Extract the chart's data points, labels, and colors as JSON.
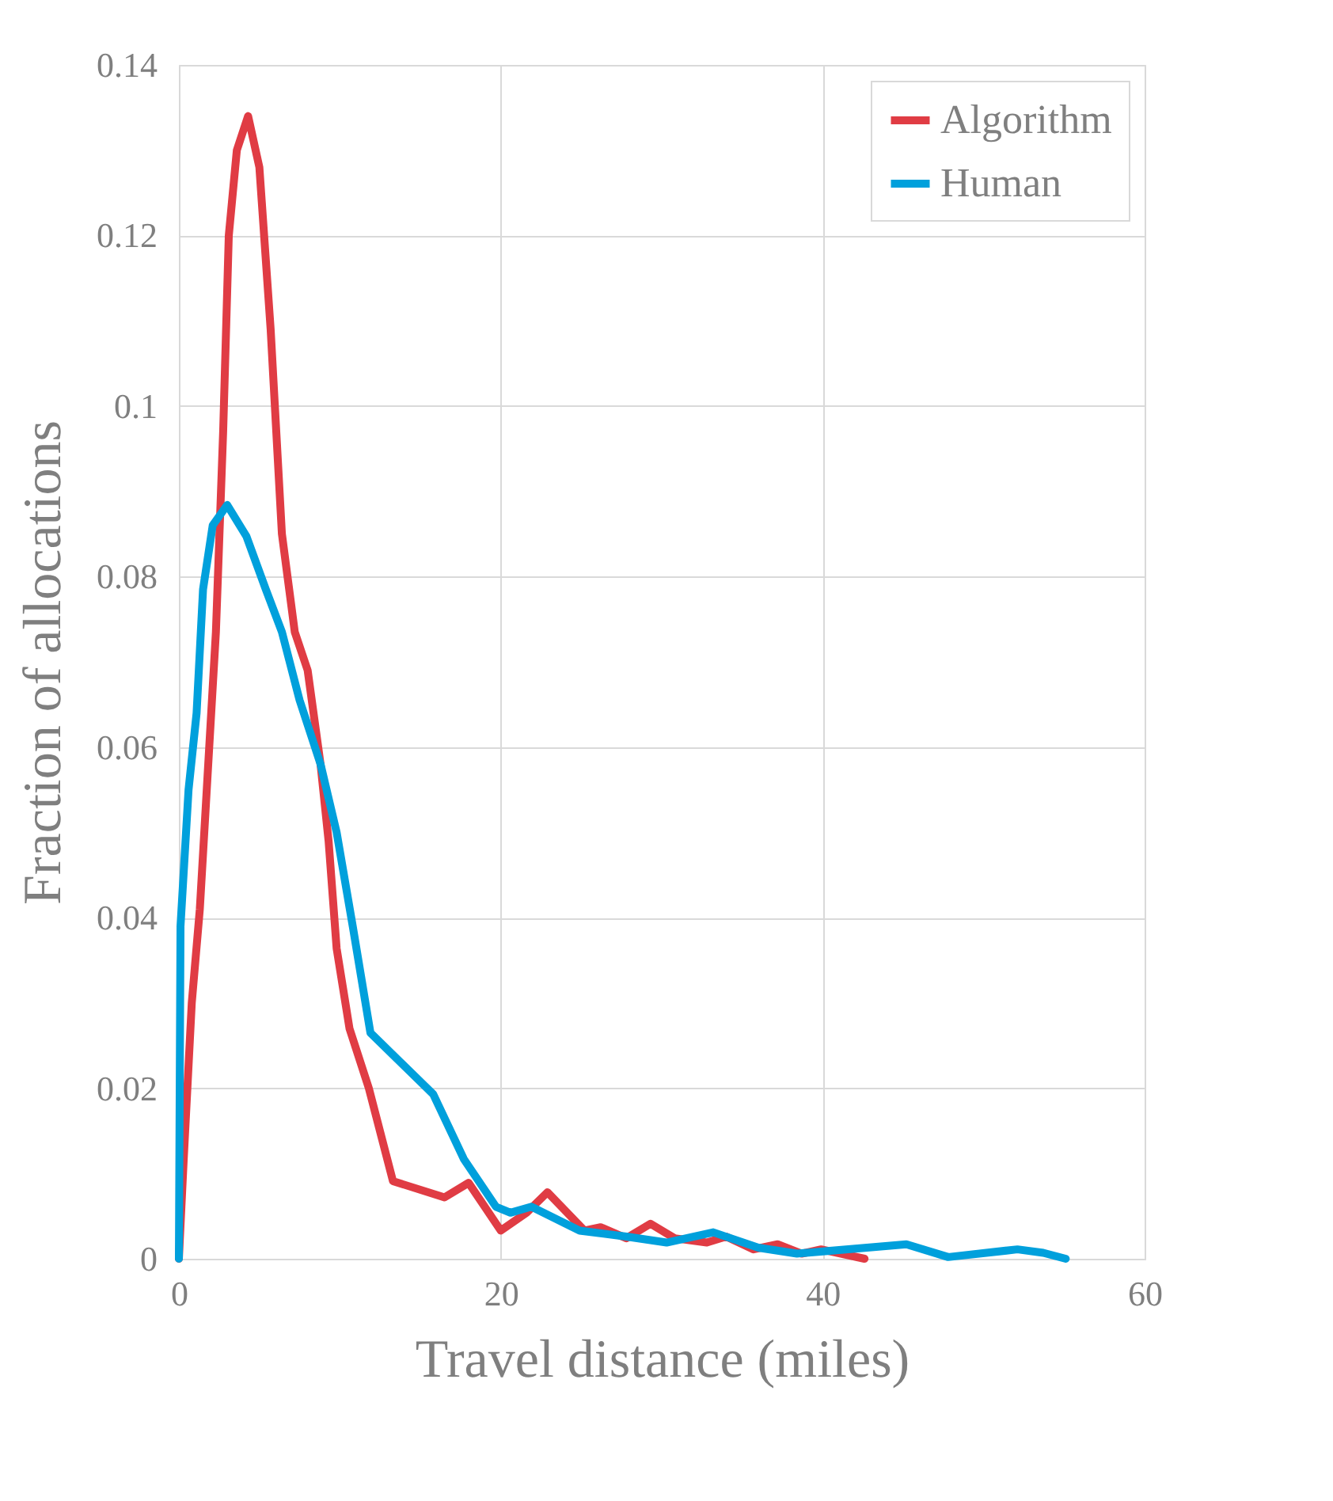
{
  "chart_data": {
    "type": "line",
    "xlabel": "Travel distance (miles)",
    "ylabel": "Fraction of allocations",
    "xlim": [
      0,
      60
    ],
    "xticks": [
      0,
      20,
      40,
      60
    ],
    "ylim": [
      0,
      0.14
    ],
    "yticks": [
      0,
      0.02,
      0.04,
      0.06,
      0.08,
      0.1,
      0.12,
      0.14
    ],
    "grid": true,
    "legend": "top right",
    "marker": "none",
    "line_style": "solid",
    "series": [
      {
        "name": "Algorithm",
        "color": "#e03c44",
        "x": [
          0,
          0.3,
          0.8,
          1.3,
          2.3,
          2.75,
          3.1,
          3.6,
          4.3,
          5.0,
          5.7,
          6.4,
          7.2,
          8.0,
          8.8,
          9.3,
          9.8,
          10.6,
          11.8,
          13.3,
          16.5,
          18,
          20,
          21.6,
          22.9,
          25.2,
          26.2,
          27.8,
          29.3,
          30.8,
          32.8,
          34.0,
          35.7,
          37.2,
          38.7,
          39.9,
          42.6
        ],
        "values": [
          0,
          0.0117,
          0.03,
          0.041,
          0.0735,
          0.097,
          0.12,
          0.13,
          0.134,
          0.128,
          0.109,
          0.085,
          0.0735,
          0.069,
          0.058,
          0.049,
          0.0364,
          0.027,
          0.02,
          0.0091,
          0.0072,
          0.0089,
          0.0033,
          0.0054,
          0.0078,
          0.0033,
          0.0037,
          0.0024,
          0.0041,
          0.0024,
          0.0019,
          0.0026,
          0.0011,
          0.0017,
          0.0006,
          0.0011,
          0
        ]
      },
      {
        "name": "Human",
        "color": "#00a0dc",
        "x": [
          0,
          0.1,
          0.6,
          1.1,
          1.5,
          2.1,
          3.0,
          4.2,
          5.4,
          6.4,
          7.5,
          8.8,
          9.8,
          10.8,
          11.9,
          15.8,
          17.7,
          19.7,
          20.6,
          21.9,
          24.9,
          27.8,
          30.3,
          33.2,
          36,
          38.4,
          40.3,
          45.2,
          47.8,
          52.1,
          53.7,
          55.1
        ],
        "values": [
          0,
          0.039,
          0.055,
          0.064,
          0.0785,
          0.086,
          0.0884,
          0.0847,
          0.0785,
          0.0735,
          0.0655,
          0.058,
          0.05,
          0.039,
          0.0265,
          0.0193,
          0.0117,
          0.0061,
          0.0054,
          0.0061,
          0.0033,
          0.0026,
          0.0019,
          0.0031,
          0.0013,
          0.0006,
          0.0009,
          0.0017,
          0.0002,
          0.0011,
          0.0007,
          0
        ]
      }
    ]
  }
}
